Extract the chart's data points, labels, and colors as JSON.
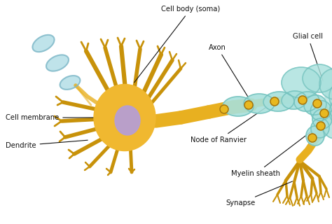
{
  "background_color": "#ffffff",
  "fig_width": 4.74,
  "fig_height": 3.2,
  "dpi": 100,
  "labels": {
    "cell_body": "Cell body (soma)",
    "cell_membrane": "Cell membrane",
    "dendrite": "Dendrite",
    "axon": "Axon",
    "glial_cell": "Glial cell",
    "node_of_ranvier": "Node of Ranvier",
    "myelin_sheath": "Myelin sheath",
    "synapse": "Synapse"
  },
  "colors": {
    "soma_body": "#F0B830",
    "soma_nucleus": "#B39DDB",
    "axon_color": "#E8B020",
    "myelin_color": "#A8E0DC",
    "myelin_outline": "#70C0BC",
    "dendrite_color": "#C8920A",
    "ranvier_color": "#E8B820",
    "synapse_color": "#C8920A",
    "prev_neuron": "#B8E0E8",
    "prev_neuron_outline": "#80B8C8",
    "label_color": "#111111",
    "arrow_color": "#111111",
    "background": "#ffffff"
  },
  "font_size": 7.2
}
